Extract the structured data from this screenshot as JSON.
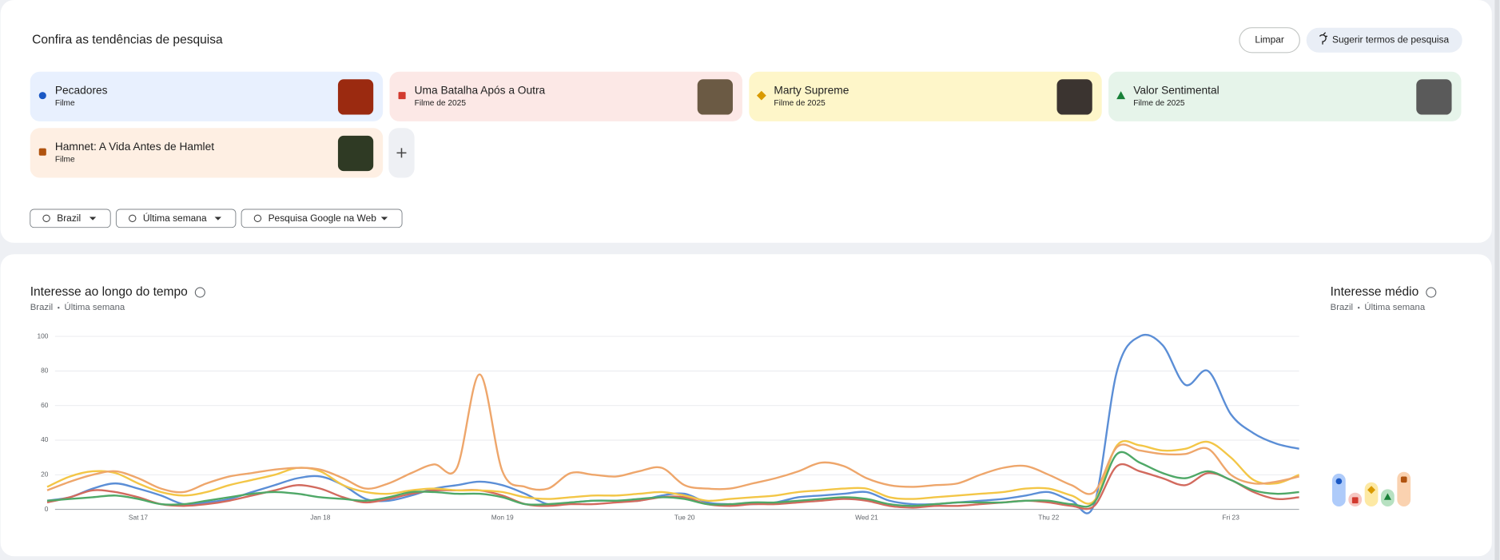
{
  "header": {
    "title": "Confira as tendências de pesquisa",
    "clear_button": "Limpar",
    "suggest_button": "Sugerir termos de pesquisa"
  },
  "search_terms": [
    {
      "name": "Pecadores",
      "subtitle": "Filme",
      "color": "#1a58c4",
      "background": "#e8f0fe"
    },
    {
      "name": "Uma Batalha Após a Outra",
      "subtitle": "Filme de 2025",
      "color": "#d23a2f",
      "background": "#fce8e6"
    },
    {
      "name": "Marty Supreme",
      "subtitle": "Filme de 2025",
      "color": "#d99a00",
      "background": "#fef6c9"
    },
    {
      "name": "Valor Sentimental",
      "subtitle": "Filme de 2025",
      "color": "#188038",
      "background": "#e6f4ea"
    },
    {
      "name": "Hamnet: A Vida Antes de Hamlet",
      "subtitle": "Filme",
      "color": "#b0530f",
      "background": "#feefe3"
    }
  ],
  "filters": [
    "Brazil",
    "Última semana",
    "Pesquisa Google na Web"
  ],
  "chart_data": [
    {
      "type": "line",
      "title": "Interesse ao longo do tempo",
      "location": "Brazil",
      "period": "Última semana",
      "categories": [
        null,
        null,
        null,
        null,
        "Sat 17",
        null,
        null,
        null,
        null,
        null,
        null,
        null,
        "Jan 18",
        null,
        null,
        null,
        null,
        null,
        null,
        null,
        "Mon 19",
        null,
        null,
        null,
        null,
        null,
        null,
        null,
        "Tue 20",
        null,
        null,
        null,
        null,
        null,
        null,
        null,
        "Wed 21",
        null,
        null,
        null,
        null,
        null,
        null,
        null,
        "Thu 22",
        null,
        null,
        null,
        null,
        null,
        null,
        null,
        "Fri 23",
        null,
        null,
        null
      ],
      "ylim": [
        0,
        100
      ],
      "yticks": [
        0,
        20,
        40,
        60,
        80,
        100
      ],
      "grid": true,
      "series": [
        {
          "color": "#5b8ed6",
          "values": [
            5,
            7,
            12,
            15,
            12,
            8,
            3,
            4,
            6,
            10,
            14,
            18,
            19,
            14,
            6,
            5,
            8,
            12,
            14,
            16,
            14,
            9,
            3,
            4,
            5,
            5,
            5,
            8,
            9,
            4,
            3,
            3,
            4,
            7,
            8,
            9,
            10,
            5,
            3,
            3,
            4,
            5,
            6,
            8,
            10,
            5,
            3,
            80,
            100,
            95,
            72,
            80,
            55,
            44,
            38,
            35
          ]
        },
        {
          "color": "#d26a5e",
          "values": [
            4,
            7,
            11,
            10,
            7,
            3,
            2,
            3,
            5,
            8,
            11,
            14,
            12,
            7,
            4,
            6,
            9,
            11,
            11,
            11,
            8,
            3,
            2,
            3,
            3,
            4,
            5,
            7,
            7,
            3,
            2,
            3,
            3,
            4,
            5,
            6,
            5,
            2,
            1,
            2,
            2,
            3,
            4,
            5,
            4,
            2,
            2,
            25,
            22,
            18,
            14,
            21,
            17,
            10,
            6,
            7
          ]
        },
        {
          "color": "#f3c646",
          "values": [
            13,
            19,
            22,
            21,
            15,
            10,
            8,
            10,
            14,
            17,
            20,
            24,
            22,
            14,
            10,
            9,
            11,
            12,
            11,
            11,
            10,
            7,
            6,
            7,
            8,
            8,
            9,
            10,
            8,
            5,
            6,
            7,
            8,
            10,
            11,
            12,
            12,
            7,
            6,
            7,
            8,
            9,
            10,
            12,
            12,
            8,
            5,
            37,
            37,
            34,
            35,
            39,
            30,
            17,
            15,
            20
          ]
        },
        {
          "color": "#4fa867",
          "values": [
            5,
            6,
            7,
            8,
            6,
            3,
            3,
            5,
            7,
            9,
            10,
            9,
            7,
            6,
            5,
            7,
            10,
            10,
            9,
            9,
            7,
            3,
            3,
            4,
            5,
            5,
            6,
            7,
            6,
            3,
            3,
            4,
            4,
            5,
            6,
            7,
            6,
            3,
            2,
            3,
            4,
            4,
            4,
            5,
            5,
            3,
            4,
            32,
            27,
            21,
            18,
            22,
            17,
            11,
            9,
            10
          ]
        },
        {
          "color": "#eea66b",
          "values": [
            11,
            16,
            20,
            22,
            18,
            12,
            10,
            15,
            19,
            21,
            23,
            24,
            23,
            18,
            12,
            15,
            21,
            26,
            24,
            78,
            22,
            13,
            12,
            21,
            20,
            19,
            22,
            24,
            14,
            12,
            12,
            15,
            18,
            22,
            27,
            25,
            18,
            14,
            13,
            14,
            15,
            20,
            24,
            25,
            20,
            14,
            10,
            36,
            34,
            32,
            32,
            35,
            20,
            15,
            16,
            19
          ]
        }
      ]
    },
    {
      "type": "bar",
      "title": "Interesse médio",
      "location": "Brazil",
      "period": "Última semana",
      "values": [
        19,
        8,
        14,
        10,
        20
      ],
      "colors": [
        "#aecbfa",
        "#f6c7c2",
        "#fde9a4",
        "#b7e1c1",
        "#fad2b0"
      ]
    }
  ]
}
